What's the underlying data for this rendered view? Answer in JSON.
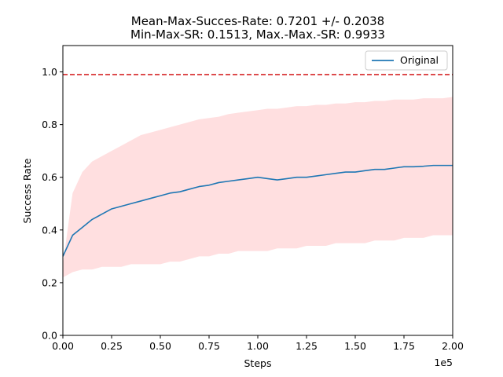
{
  "chart_data": {
    "type": "line",
    "title_lines": [
      "Mean-Max-Succes-Rate: 0.7201 +/- 0.2038",
      "Min-Max-SR: 0.1513, Max.-Max.-SR: 0.9933"
    ],
    "xlabel": "Steps",
    "ylabel": "Success Rate",
    "x_offset_text": "1e5",
    "xlim": [
      0,
      2.0
    ],
    "ylim": [
      0,
      1.1
    ],
    "x_ticks": [
      "0.00",
      "0.25",
      "0.50",
      "0.75",
      "1.00",
      "1.25",
      "1.50",
      "1.75",
      "2.00"
    ],
    "y_ticks": [
      "0.0",
      "0.2",
      "0.4",
      "0.6",
      "0.8",
      "1.0"
    ],
    "legend_position": "top-right",
    "series": [
      {
        "name": "Original",
        "color": "#1f77b4",
        "x": [
          0.0,
          0.05,
          0.1,
          0.15,
          0.2,
          0.25,
          0.3,
          0.35,
          0.4,
          0.45,
          0.5,
          0.55,
          0.6,
          0.65,
          0.7,
          0.75,
          0.8,
          0.85,
          0.9,
          0.95,
          1.0,
          1.05,
          1.1,
          1.15,
          1.2,
          1.25,
          1.3,
          1.35,
          1.4,
          1.45,
          1.5,
          1.55,
          1.6,
          1.65,
          1.7,
          1.75,
          1.8,
          1.85,
          1.9,
          1.95,
          2.0
        ],
        "y": [
          0.3,
          0.38,
          0.41,
          0.44,
          0.46,
          0.48,
          0.49,
          0.5,
          0.51,
          0.52,
          0.53,
          0.54,
          0.545,
          0.555,
          0.565,
          0.57,
          0.58,
          0.585,
          0.59,
          0.595,
          0.6,
          0.595,
          0.59,
          0.595,
          0.6,
          0.6,
          0.605,
          0.61,
          0.615,
          0.62,
          0.62,
          0.625,
          0.63,
          0.63,
          0.635,
          0.64,
          0.64,
          0.642,
          0.645,
          0.645,
          0.645
        ],
        "band_upper": [
          0.27,
          0.54,
          0.62,
          0.66,
          0.68,
          0.7,
          0.72,
          0.74,
          0.76,
          0.77,
          0.78,
          0.79,
          0.8,
          0.81,
          0.82,
          0.825,
          0.83,
          0.84,
          0.845,
          0.85,
          0.855,
          0.86,
          0.86,
          0.865,
          0.87,
          0.87,
          0.875,
          0.875,
          0.88,
          0.88,
          0.885,
          0.885,
          0.89,
          0.89,
          0.895,
          0.895,
          0.895,
          0.9,
          0.9,
          0.9,
          0.905
        ],
        "band_lower": [
          0.22,
          0.24,
          0.25,
          0.25,
          0.26,
          0.26,
          0.26,
          0.27,
          0.27,
          0.27,
          0.27,
          0.28,
          0.28,
          0.29,
          0.3,
          0.3,
          0.31,
          0.31,
          0.32,
          0.32,
          0.32,
          0.32,
          0.33,
          0.33,
          0.33,
          0.34,
          0.34,
          0.34,
          0.35,
          0.35,
          0.35,
          0.35,
          0.36,
          0.36,
          0.36,
          0.37,
          0.37,
          0.37,
          0.38,
          0.38,
          0.38
        ]
      }
    ],
    "reference_line": {
      "y": 0.99,
      "color": "#d62728",
      "style": "dashed"
    },
    "band_color": "#ffdfe0"
  }
}
